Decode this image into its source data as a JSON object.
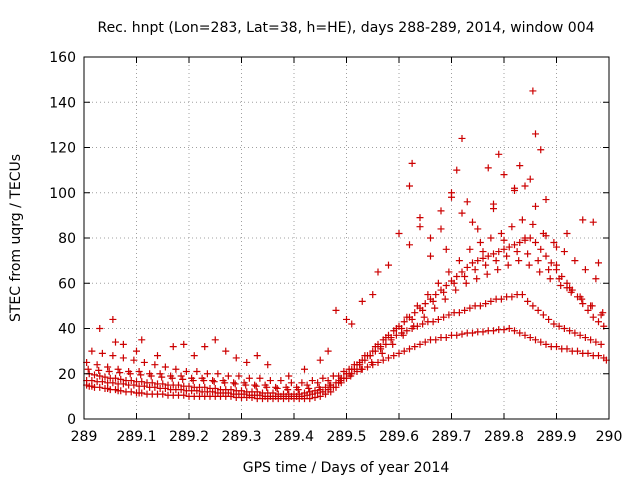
{
  "chart_data": {
    "type": "scatter",
    "title": "Rec. hnpt (Lon=283, Lat=38, h=HE), days 288-289, 2014, window 004",
    "xlabel": "GPS time / Days of year 2014",
    "ylabel": "STEC from uqrg / TECUs",
    "xlim": [
      289,
      290
    ],
    "ylim": [
      0,
      160
    ],
    "x_ticks": [
      289,
      289.1,
      289.2,
      289.3,
      289.4,
      289.5,
      289.6,
      289.7,
      289.8,
      289.9,
      290
    ],
    "x_tick_labels": [
      "289",
      "289.1",
      "289.2",
      "289.3",
      "289.4",
      "289.5",
      "289.6",
      "289.7",
      "289.8",
      "289.9",
      "290"
    ],
    "y_ticks": [
      0,
      20,
      40,
      60,
      80,
      100,
      120,
      140,
      160
    ],
    "y_tick_labels": [
      "0",
      "20",
      "40",
      "60",
      "80",
      "100",
      "120",
      "140",
      "160"
    ],
    "grid": true,
    "legend": "none",
    "marker": "plus",
    "color": "#cc0000",
    "series": [
      {
        "x": [
          289.005,
          289.01,
          289.015,
          289.02,
          289.03,
          289.04,
          289.045,
          289.05,
          289.06,
          289.065,
          289.07,
          289.08,
          289.09,
          289.1,
          289.105,
          289.11,
          289.12,
          289.13,
          289.14,
          289.15,
          289.16,
          289.17,
          289.18,
          289.19,
          289.2,
          289.21,
          289.22,
          289.23,
          289.24,
          289.25,
          289.26,
          289.27,
          289.28,
          289.29,
          289.3,
          289.31,
          289.32,
          289.33,
          289.34,
          289.35,
          289.36,
          289.37,
          289.38,
          289.39,
          289.4,
          289.41,
          289.42,
          289.43,
          289.44,
          289.45,
          289.46,
          289.47,
          289.48,
          289.49,
          289.5,
          289.51,
          289.52,
          289.53,
          289.54,
          289.55,
          289.56,
          289.57,
          289.58,
          289.59,
          289.6,
          289.61,
          289.62,
          289.63,
          289.64,
          289.65,
          289.66,
          289.67,
          289.68,
          289.69,
          289.7,
          289.71,
          289.72,
          289.73,
          289.74,
          289.75,
          289.76,
          289.77,
          289.78,
          289.79,
          289.8,
          289.81,
          289.82,
          289.83,
          289.84,
          289.85,
          289.86,
          289.87,
          289.88,
          289.89,
          289.9,
          289.91,
          289.92,
          289.93,
          289.94,
          289.95,
          289.96,
          289.97,
          289.98,
          289.99,
          289.995
        ],
        "y": [
          15,
          14.5,
          14.5,
          14,
          14,
          13.5,
          13.5,
          13,
          13,
          12.5,
          12.5,
          12,
          12,
          11.5,
          11.5,
          11.5,
          11,
          11,
          11,
          11,
          10.5,
          10.5,
          10.5,
          10.5,
          10,
          10,
          10,
          10,
          10,
          10,
          10,
          10,
          10,
          9.5,
          9.5,
          9.5,
          9.5,
          9,
          9,
          9,
          9,
          9,
          9,
          9,
          9,
          9,
          9,
          9,
          9.5,
          10,
          11,
          12,
          14,
          16,
          18,
          20,
          21,
          22,
          23,
          24,
          25,
          26,
          27,
          28,
          29,
          30,
          31,
          32,
          33,
          34,
          35,
          35,
          36,
          36,
          37,
          37,
          37.5,
          38,
          38,
          38.5,
          38.5,
          39,
          39,
          39.5,
          39.5,
          40,
          39,
          38,
          37,
          36,
          35,
          34,
          33,
          32,
          32,
          31,
          31,
          30,
          30,
          29,
          29,
          28,
          28,
          27,
          26
        ]
      },
      {
        "x": [
          289.005,
          289.015,
          289.025,
          289.035,
          289.045,
          289.055,
          289.065,
          289.075,
          289.085,
          289.095,
          289.105,
          289.115,
          289.125,
          289.135,
          289.145,
          289.155,
          289.165,
          289.175,
          289.185,
          289.195,
          289.205,
          289.215,
          289.225,
          289.235,
          289.245,
          289.255,
          289.265,
          289.275,
          289.285,
          289.295,
          289.305,
          289.315,
          289.325,
          289.335,
          289.345,
          289.355,
          289.365,
          289.375,
          289.385,
          289.395,
          289.405,
          289.415,
          289.425,
          289.435,
          289.445,
          289.455,
          289.465,
          289.475,
          289.485,
          289.495,
          289.505,
          289.515,
          289.525,
          289.535,
          289.545,
          289.555,
          289.565,
          289.575,
          289.585,
          289.595,
          289.605,
          289.615,
          289.625,
          289.635,
          289.645,
          289.655,
          289.665,
          289.675,
          289.685,
          289.695,
          289.705,
          289.715,
          289.725,
          289.735,
          289.745,
          289.755,
          289.765,
          289.775,
          289.785,
          289.795,
          289.805,
          289.815,
          289.825,
          289.835,
          289.845,
          289.855,
          289.865,
          289.875,
          289.885,
          289.895,
          289.905,
          289.915,
          289.925,
          289.935,
          289.945,
          289.955,
          289.965,
          289.975,
          289.985
        ],
        "y": [
          17,
          17,
          16.5,
          16.5,
          16,
          16,
          15.5,
          15.5,
          15,
          15,
          14.5,
          14.5,
          14,
          14,
          13.5,
          13.5,
          13,
          13,
          13,
          12.5,
          12.5,
          12.5,
          12,
          12,
          12,
          11.5,
          11.5,
          11.5,
          11,
          11,
          11,
          10.5,
          10.5,
          10.5,
          10,
          10,
          10,
          10,
          10,
          10,
          10,
          10,
          10.5,
          11,
          11.5,
          12,
          13,
          14,
          16,
          18,
          20,
          22,
          24,
          26,
          28,
          30,
          31,
          33,
          35,
          37,
          38,
          39,
          40,
          41,
          42,
          43,
          43,
          44,
          45,
          46,
          47,
          47,
          48,
          49,
          50,
          50,
          51,
          52,
          53,
          53,
          54,
          54,
          55,
          55,
          52,
          50,
          48,
          46,
          44,
          42,
          41,
          40,
          39,
          38,
          37,
          36,
          35,
          34,
          33
        ]
      },
      {
        "x": [
          289.01,
          289.02,
          289.03,
          289.04,
          289.05,
          289.06,
          289.07,
          289.08,
          289.09,
          289.1,
          289.11,
          289.12,
          289.13,
          289.14,
          289.15,
          289.16,
          289.17,
          289.18,
          289.19,
          289.2,
          289.21,
          289.22,
          289.23,
          289.24,
          289.25,
          289.26,
          289.27,
          289.28,
          289.29,
          289.3,
          289.31,
          289.32,
          289.33,
          289.34,
          289.35,
          289.36,
          289.37,
          289.38,
          289.39,
          289.4,
          289.41,
          289.42,
          289.43,
          289.44,
          289.45,
          289.46,
          289.47,
          289.48,
          289.49,
          289.5,
          289.51,
          289.52,
          289.53,
          289.54,
          289.55,
          289.56,
          289.57,
          289.58,
          289.59,
          289.6,
          289.61,
          289.62,
          289.63,
          289.64,
          289.65,
          289.66,
          289.67,
          289.68,
          289.69,
          289.7,
          289.71,
          289.72,
          289.73,
          289.74,
          289.75,
          289.76,
          289.77,
          289.78,
          289.79,
          289.8,
          289.81,
          289.82,
          289.83,
          289.84,
          289.85,
          289.86,
          289.87,
          289.88,
          289.89,
          289.9,
          289.91,
          289.92,
          289.93,
          289.94,
          289.95,
          289.96,
          289.97,
          289.98,
          289.99
        ],
        "y": [
          20,
          19.5,
          19,
          18.5,
          18,
          18,
          17.5,
          17,
          17,
          16.5,
          16.5,
          16,
          16,
          15.5,
          15.5,
          15,
          15,
          15,
          14.5,
          14.5,
          14,
          14,
          14,
          13.5,
          13.5,
          13,
          13,
          13,
          12.5,
          12.5,
          12,
          12,
          12,
          11.5,
          11.5,
          11.5,
          11,
          11,
          11,
          11,
          11,
          11.5,
          12,
          12.5,
          13,
          14,
          15,
          16,
          18,
          20,
          22,
          24,
          26,
          28,
          30,
          33,
          35,
          37,
          39,
          41,
          43,
          45,
          47,
          49,
          51,
          53,
          55,
          57,
          59,
          61,
          63,
          65,
          67,
          69,
          70,
          71,
          72,
          73,
          74,
          75,
          76,
          77,
          78,
          79,
          80,
          78,
          75,
          72,
          69,
          66,
          63,
          60,
          57,
          54,
          51,
          48,
          45,
          43,
          41
        ]
      },
      {
        "x": [
          289.005,
          289.025,
          289.045,
          289.065,
          289.085,
          289.105,
          289.125,
          289.145,
          289.165,
          289.185,
          289.205,
          289.225,
          289.245,
          289.265,
          289.285,
          289.305,
          289.325,
          289.345,
          289.365,
          289.385,
          289.405,
          289.425,
          289.445,
          289.465,
          289.485,
          289.505,
          289.525,
          289.545,
          289.565,
          289.585,
          289.605,
          289.625,
          289.645,
          289.665,
          289.685,
          289.705,
          289.725,
          289.745,
          289.765,
          289.785,
          289.805,
          289.825,
          289.845,
          289.865,
          289.885,
          289.905,
          289.925,
          289.945,
          289.965,
          289.985
        ],
        "y": [
          25,
          24,
          23,
          22,
          21,
          21,
          20,
          20,
          19,
          19,
          18,
          18,
          17,
          17,
          16,
          16,
          15,
          15,
          14,
          14,
          14,
          15,
          16,
          17,
          19,
          22,
          25,
          28,
          32,
          36,
          40,
          44,
          48,
          52,
          56,
          60,
          63,
          66,
          68,
          70,
          72,
          74,
          73,
          70,
          66,
          62,
          58,
          54,
          50,
          46
        ]
      },
      {
        "x": [
          289.015,
          289.035,
          289.055,
          289.075,
          289.095,
          289.115,
          289.135,
          289.155,
          289.175,
          289.195,
          289.215,
          289.235,
          289.255,
          289.275,
          289.295,
          289.315,
          289.335,
          289.355,
          289.375,
          289.395,
          289.415,
          289.435,
          289.455,
          289.475,
          289.495,
          289.515,
          289.535,
          289.555,
          289.575,
          289.595,
          289.615,
          289.635,
          289.655,
          289.675,
          289.695,
          289.715,
          289.735,
          289.755,
          289.775,
          289.795,
          289.815,
          289.835,
          289.855,
          289.875,
          289.895,
          289.915,
          289.935,
          289.955,
          289.975
        ],
        "y": [
          30,
          29,
          28,
          27,
          26,
          25,
          24,
          23,
          22,
          21,
          21,
          20,
          20,
          19,
          19,
          18,
          18,
          17,
          17,
          16,
          16,
          17,
          18,
          19,
          21,
          24,
          28,
          32,
          36,
          40,
          45,
          50,
          55,
          60,
          65,
          70,
          75,
          78,
          80,
          82,
          85,
          88,
          86,
          82,
          78,
          74,
          70,
          66,
          62
        ]
      },
      {
        "x": [
          289.008,
          289.028,
          289.048,
          289.068,
          289.088,
          289.108,
          289.128,
          289.148,
          289.168,
          289.188,
          289.208,
          289.228,
          289.248,
          289.268,
          289.288,
          289.308,
          289.328,
          289.348,
          289.368,
          289.388,
          289.408,
          289.428,
          289.448,
          289.468,
          289.488,
          289.508,
          289.528,
          289.548,
          289.568,
          289.588,
          289.608,
          289.628,
          289.648,
          289.668,
          289.688,
          289.708,
          289.728,
          289.748,
          289.768,
          289.788,
          289.808,
          289.828,
          289.848,
          289.868,
          289.888,
          289.908,
          289.928,
          289.948,
          289.968,
          289.988
        ],
        "y": [
          22,
          21.5,
          21,
          20.5,
          20,
          19.5,
          19,
          18.5,
          18,
          17.5,
          17,
          17,
          16.5,
          16,
          15.5,
          15,
          14.5,
          14,
          13.5,
          13,
          13,
          13.5,
          14,
          15,
          17,
          19,
          22,
          25,
          29,
          33,
          37,
          41,
          45,
          49,
          53,
          57,
          60,
          62,
          64,
          66,
          68,
          70,
          68,
          65,
          62,
          59,
          56,
          53,
          50,
          47
        ]
      },
      {
        "x": [
          289.03,
          289.055,
          289.06,
          289.075,
          289.1,
          289.11,
          289.14,
          289.17,
          289.19,
          289.21,
          289.23,
          289.25,
          289.27,
          289.29,
          289.31,
          289.33,
          289.35,
          289.39,
          289.42,
          289.45,
          289.465,
          289.48,
          289.5,
          289.51,
          289.53,
          289.55,
          289.56,
          289.58,
          289.6,
          289.62,
          289.625,
          289.64,
          289.66,
          289.68,
          289.7,
          289.71,
          289.72,
          289.73,
          289.75,
          289.77,
          289.78,
          289.79,
          289.8,
          289.82,
          289.83,
          289.84,
          289.85,
          289.855,
          289.86,
          289.87,
          289.88,
          289.9,
          289.92,
          289.95,
          289.97,
          289.98
        ],
        "y": [
          40,
          44,
          34,
          33,
          30,
          35,
          28,
          32,
          33,
          28,
          32,
          35,
          30,
          27,
          25,
          28,
          24,
          19,
          22,
          26,
          30,
          48,
          44,
          42,
          52,
          55,
          65,
          68,
          82,
          77,
          113,
          89,
          80,
          92,
          100,
          110,
          124,
          96,
          84,
          111,
          93,
          117,
          108,
          102,
          112,
          80,
          106,
          145,
          126,
          119,
          97,
          76,
          82,
          88,
          87,
          69
        ]
      },
      {
        "x": [
          289.62,
          289.64,
          289.66,
          289.68,
          289.69,
          289.7,
          289.72,
          289.74,
          289.76,
          289.78,
          289.8,
          289.82,
          289.84,
          289.86,
          289.88,
          289.9,
          289.92
        ],
        "y": [
          103,
          85,
          72,
          84,
          75,
          98,
          91,
          87,
          74,
          95,
          79,
          101,
          103,
          94,
          81,
          68,
          58
        ]
      }
    ]
  }
}
